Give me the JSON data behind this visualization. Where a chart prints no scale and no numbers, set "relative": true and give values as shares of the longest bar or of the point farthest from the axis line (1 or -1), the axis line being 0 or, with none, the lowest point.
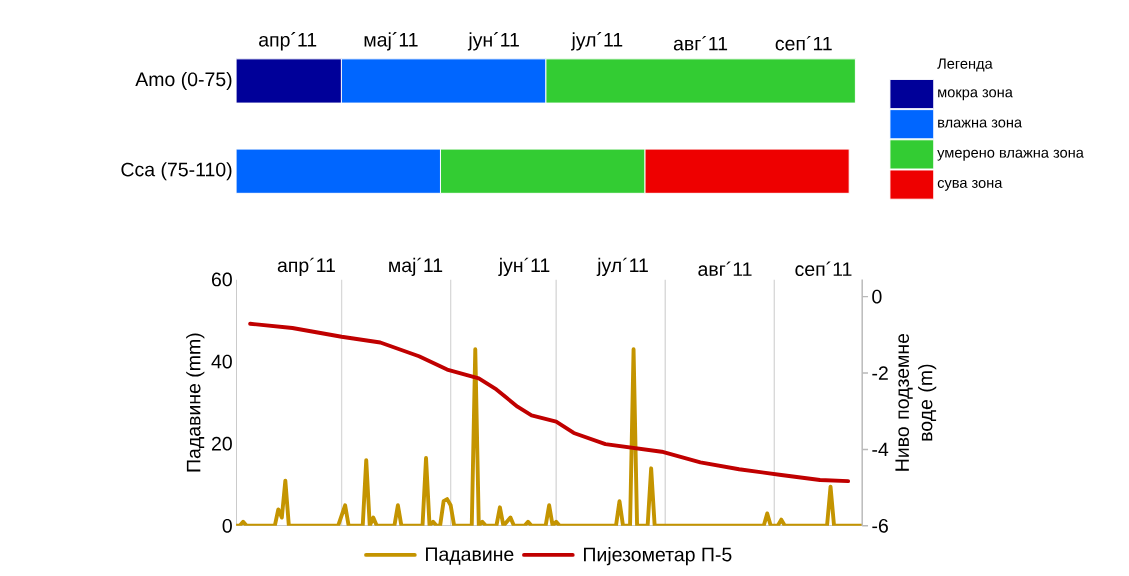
{
  "chart_data": [
    {
      "type": "bar",
      "orientation": "horizontal",
      "stacked": true,
      "relative": true,
      "categories": [
        "Amo (0-75)",
        "Cca (75-110)"
      ],
      "series": [
        {
          "name": "мокра зона",
          "color": "#000099",
          "values": [
            0.17,
            0
          ]
        },
        {
          "name": "влажна зона",
          "color": "#0066ff",
          "values": [
            0.33,
            0.33
          ]
        },
        {
          "name": "умерено влажна зона",
          "color": "#33cc33",
          "values": [
            0.5,
            0.33
          ]
        },
        {
          "name": "сува зона",
          "color": "#ee0000",
          "values": [
            0,
            0.33
          ]
        }
      ],
      "annotations": [
        "апр´11",
        "мај´11",
        "јун´11",
        "јул´11",
        "авг´11",
        "сеп´11"
      ],
      "legend": "right",
      "legend_title": "Легенда"
    },
    {
      "type": "line",
      "ylabel": "Падавине (mm)",
      "y2label": "Ниво подземне воде (m)",
      "series": [
        {
          "name": "Падавине",
          "color": "#c49400",
          "x": [
            "2011-04-01",
            "2011-04-02",
            "2011-04-03",
            "2011-04-04",
            "2011-04-12",
            "2011-04-13",
            "2011-04-14",
            "2011-04-15",
            "2011-04-16",
            "2011-04-30",
            "2011-05-02",
            "2011-05-03",
            "2011-05-07",
            "2011-05-08",
            "2011-05-09",
            "2011-05-10",
            "2011-05-11",
            "2011-05-16",
            "2011-05-17",
            "2011-05-18",
            "2011-05-24",
            "2011-05-25",
            "2011-05-26",
            "2011-05-27",
            "2011-05-28",
            "2011-05-29",
            "2011-05-30",
            "2011-05-31",
            "2011-06-01",
            "2011-06-02",
            "2011-06-07",
            "2011-06-08",
            "2011-06-09",
            "2011-06-10",
            "2011-06-11",
            "2011-06-12",
            "2011-06-14",
            "2011-06-15",
            "2011-06-16",
            "2011-06-18",
            "2011-06-19",
            "2011-06-22",
            "2011-06-23",
            "2011-06-24",
            "2011-06-28",
            "2011-06-29",
            "2011-06-30",
            "2011-07-01",
            "2011-07-02",
            "2011-07-18",
            "2011-07-19",
            "2011-07-20",
            "2011-07-22",
            "2011-07-23",
            "2011-07-24",
            "2011-07-27",
            "2011-07-28",
            "2011-07-29",
            "2011-08-29",
            "2011-08-30",
            "2011-08-31",
            "2011-09-02",
            "2011-09-03",
            "2011-09-04",
            "2011-09-16",
            "2011-09-17",
            "2011-09-18",
            "2011-09-26"
          ],
          "values": [
            0,
            0,
            1,
            0,
            0,
            4,
            2,
            11,
            0,
            0,
            5,
            0,
            0,
            16,
            0,
            2,
            0,
            0,
            5,
            0,
            0,
            16.5,
            0,
            1,
            0,
            0,
            6,
            6.5,
            5,
            0,
            0,
            43,
            0,
            1,
            0,
            0,
            0,
            4.5,
            0,
            2,
            0,
            0,
            1,
            0,
            0,
            5,
            0,
            1,
            0,
            0,
            6,
            0,
            0,
            43,
            0,
            0,
            14,
            0,
            0,
            3,
            0,
            0,
            1.5,
            0,
            0,
            9.5,
            0,
            0
          ]
        },
        {
          "name": "Пијезометар П-5",
          "color": "#c00000",
          "axis": "y2",
          "x": [
            "2011-04-05",
            "2011-04-17",
            "2011-05-01",
            "2011-05-12",
            "2011-05-23",
            "2011-05-31",
            "2011-06-09",
            "2011-06-14",
            "2011-06-20",
            "2011-06-24",
            "2011-07-01",
            "2011-07-06",
            "2011-07-15",
            "2011-07-23",
            "2011-07-31",
            "2011-08-11",
            "2011-08-22",
            "2011-09-03",
            "2011-09-14",
            "2011-09-22"
          ],
          "values": [
            -0.71,
            -0.82,
            -1.05,
            -1.2,
            -1.56,
            -1.91,
            -2.14,
            -2.43,
            -2.88,
            -3.11,
            -3.27,
            -3.57,
            -3.86,
            -3.96,
            -4.06,
            -4.34,
            -4.52,
            -4.67,
            -4.8,
            -4.83
          ]
        }
      ],
      "xlim": [
        "2011-04-01",
        "2011-09-26"
      ],
      "xticks": [
        {
          "value": "2011-04-21",
          "label": "апр´11"
        },
        {
          "value": "2011-05-22",
          "label": "мај´11"
        },
        {
          "value": "2011-06-22",
          "label": "јун´11"
        },
        {
          "value": "2011-07-20",
          "label": "јул´11"
        },
        {
          "value": "2011-08-18",
          "label": "авг´11"
        },
        {
          "value": "2011-09-15",
          "label": "сеп´11"
        }
      ],
      "ylim": [
        0,
        60
      ],
      "yticks": [
        0,
        20,
        40,
        60
      ],
      "y2lim": [
        -6,
        0.45
      ],
      "y2ticks": [
        -6,
        -4,
        -2,
        0
      ],
      "ref_lines": [
        {
          "axis": "x",
          "value": "2011-05-01",
          "color": "#d9d9d9"
        },
        {
          "axis": "x",
          "value": "2011-06-01",
          "color": "#d9d9d9"
        },
        {
          "axis": "x",
          "value": "2011-07-01",
          "color": "#d9d9d9"
        },
        {
          "axis": "x",
          "value": "2011-08-01",
          "color": "#d9d9d9"
        },
        {
          "axis": "x",
          "value": "2011-09-01",
          "color": "#d9d9d9"
        }
      ],
      "legend": "bottom"
    }
  ]
}
